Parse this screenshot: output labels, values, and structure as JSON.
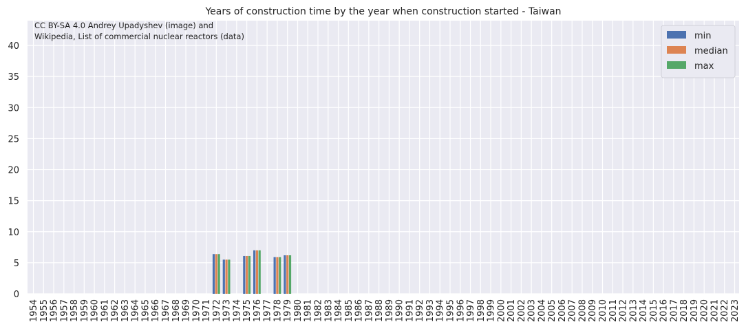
{
  "chart_data": {
    "type": "bar",
    "title": "Years of construction time by the year when construction started - Taiwan",
    "attribution": [
      "CC BY-SA 4.0 Andrey Upadyshev (image) and",
      "Wikipedia, List of commercial nuclear reactors (data)"
    ],
    "xlabel": "",
    "ylabel": "",
    "ylim": [
      0,
      44
    ],
    "yticks": [
      0,
      5,
      10,
      15,
      20,
      25,
      30,
      35,
      40
    ],
    "grid": true,
    "legend_position": "top-right",
    "categories": [
      "1954",
      "1955",
      "1956",
      "1957",
      "1958",
      "1959",
      "1960",
      "1961",
      "1962",
      "1963",
      "1964",
      "1965",
      "1966",
      "1967",
      "1968",
      "1969",
      "1970",
      "1971",
      "1972",
      "1973",
      "1974",
      "1975",
      "1976",
      "1977",
      "1978",
      "1979",
      "1980",
      "1981",
      "1982",
      "1983",
      "1984",
      "1985",
      "1986",
      "1987",
      "1988",
      "1989",
      "1990",
      "1991",
      "1992",
      "1993",
      "1994",
      "1995",
      "1996",
      "1997",
      "1998",
      "1999",
      "2000",
      "2001",
      "2002",
      "2003",
      "2004",
      "2005",
      "2006",
      "2007",
      "2008",
      "2009",
      "2010",
      "2011",
      "2012",
      "2013",
      "2014",
      "2015",
      "2016",
      "2017",
      "2018",
      "2019",
      "2020",
      "2021",
      "2022",
      "2023"
    ],
    "highlighted_categories": [
      "1957",
      "1979",
      "1986",
      "2011"
    ],
    "highlight_color": "#e8000b",
    "series": [
      {
        "name": "min",
        "color": "#4c72b0",
        "values": {
          "1972": 6.4,
          "1973": 5.5,
          "1975": 6.1,
          "1976": 7.0,
          "1978": 5.9,
          "1979": 6.2
        }
      },
      {
        "name": "median",
        "color": "#dd8452",
        "values": {
          "1972": 6.4,
          "1973": 5.5,
          "1975": 6.1,
          "1976": 7.0,
          "1978": 5.9,
          "1979": 6.2
        }
      },
      {
        "name": "max",
        "color": "#55a868",
        "values": {
          "1972": 6.4,
          "1973": 5.5,
          "1975": 6.1,
          "1976": 7.0,
          "1978": 5.9,
          "1979": 6.2
        }
      }
    ]
  }
}
